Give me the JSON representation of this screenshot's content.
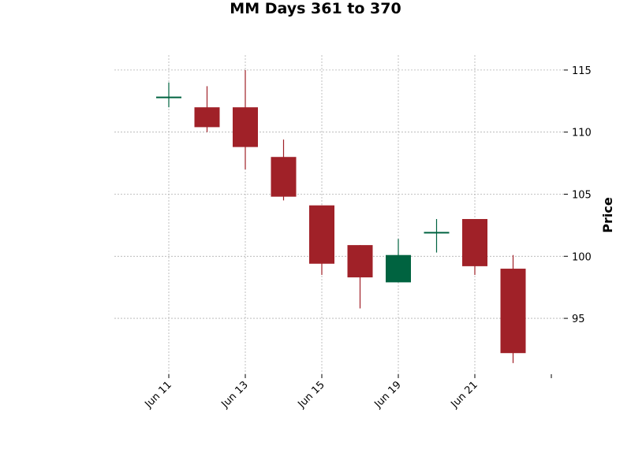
{
  "chart_data": {
    "type": "candlestick",
    "title": "MM Days 361 to 370",
    "ylabel": "Price",
    "xlabel": "",
    "ylim": [
      90.5,
      116.2
    ],
    "yticks": [
      95,
      100,
      105,
      110,
      115
    ],
    "xticks": [
      {
        "label": "Jun 11",
        "index": 0
      },
      {
        "label": "Jun 13",
        "index": 2
      },
      {
        "label": "Jun 15",
        "index": 4
      },
      {
        "label": "Jun 19",
        "index": 6
      },
      {
        "label": "Jun 21",
        "index": 8
      },
      {
        "label": "",
        "index": 10
      }
    ],
    "grid": true,
    "colors": {
      "up": "#006340",
      "down": "#a02128",
      "grid": "#b0b0b0"
    },
    "candles": [
      {
        "open": 112.8,
        "high": 114.0,
        "low": 112.0,
        "close": 112.8
      },
      {
        "open": 112.0,
        "high": 113.7,
        "low": 110.0,
        "close": 110.4
      },
      {
        "open": 112.0,
        "high": 115.0,
        "low": 107.0,
        "close": 108.8
      },
      {
        "open": 108.0,
        "high": 109.4,
        "low": 104.5,
        "close": 104.8
      },
      {
        "open": 104.1,
        "high": 104.1,
        "low": 98.5,
        "close": 99.4
      },
      {
        "open": 100.9,
        "high": 100.9,
        "low": 95.8,
        "close": 98.3
      },
      {
        "open": 97.9,
        "high": 101.4,
        "low": 97.9,
        "close": 100.1
      },
      {
        "open": 101.9,
        "high": 103.0,
        "low": 100.3,
        "close": 101.9
      },
      {
        "open": 103.0,
        "high": 103.0,
        "low": 98.5,
        "close": 99.2
      },
      {
        "open": 99.0,
        "high": 100.1,
        "low": 91.4,
        "close": 92.2
      }
    ]
  }
}
